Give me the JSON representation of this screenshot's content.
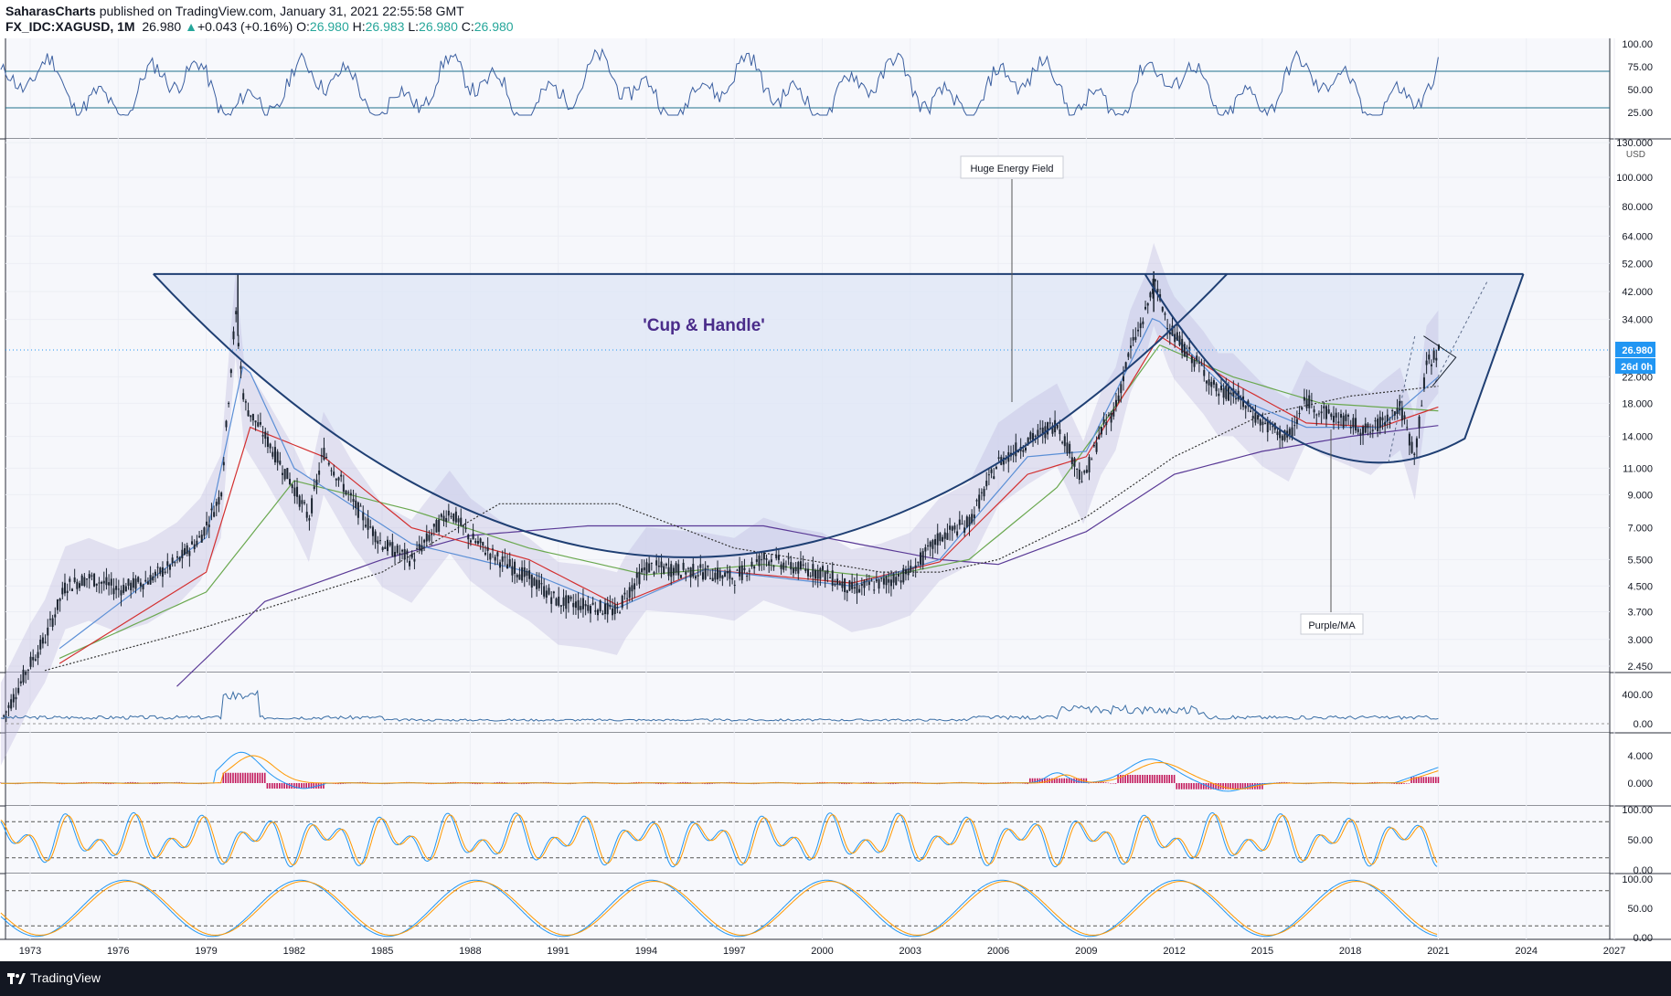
{
  "header": {
    "author": "SaharasCharts",
    "published_text": " published on TradingView.com, January 31, 2021 22:55:58 GMT",
    "symbol": "FX_IDC:XAGUSD, 1M",
    "last": "26.980",
    "change": "+0.043 (+0.16%)",
    "o_label": "O:",
    "o_value": "26.980",
    "h_label": "H:",
    "h_value": "26.983",
    "l_label": "L:",
    "l_value": "26.980",
    "c_label": "C:",
    "c_value": "26.980"
  },
  "footer": {
    "brand": "TradingView"
  },
  "colors": {
    "price_badge": "#2196f3",
    "cup_fill": "#dde6f6",
    "cup_line": "#1f3f73",
    "candle": "#1b2430",
    "ma_blue": "#5b8fd6",
    "ma_red": "#d32f2f",
    "ma_green": "#6aa84f",
    "ma_purple": "#5a3a96",
    "ma_black_dotted": "#333333",
    "rsi_line": "#3b5fa0",
    "macd_blue": "#2196f3",
    "macd_orange": "#ff9800",
    "macd_hist": "#c2185b",
    "stoch_k": "#2196f3",
    "stoch_d": "#ff9800",
    "title_text": "#4a2c8a"
  },
  "chart_data": {
    "type": "line",
    "symbol": "FX_IDC:XAGUSD",
    "interval": "1M",
    "x_ticks": [
      "1973",
      "1976",
      "1979",
      "1982",
      "1985",
      "1988",
      "1991",
      "1994",
      "1997",
      "2000",
      "2003",
      "2006",
      "2009",
      "2012",
      "2015",
      "2018",
      "2021",
      "2024",
      "2027"
    ],
    "price_axis": {
      "unit": "USD",
      "scale": "log",
      "ticks": [
        "130.000",
        "100.000",
        "80.000",
        "64.000",
        "52.000",
        "42.000",
        "34.000",
        "26.980",
        "22.000",
        "18.000",
        "14.000",
        "11.000",
        "9.000",
        "7.000",
        "5.500",
        "4.500",
        "3.700",
        "3.000",
        "2.450"
      ],
      "last_price_label": "26.980",
      "countdown_label": "26d 0h"
    },
    "annotations": [
      {
        "text": "'Cup & Handle'"
      },
      {
        "text": "Huge Energy Field"
      },
      {
        "text": "Purple/MA"
      }
    ],
    "price_series": {
      "name": "",
      "x": [
        1972.0,
        1973.0,
        1973.5,
        1974.2,
        1975.0,
        1976.0,
        1977.0,
        1978.0,
        1978.8,
        1979.5,
        1980.0,
        1980.3,
        1981.0,
        1982.0,
        1982.5,
        1983.0,
        1984.0,
        1985.0,
        1986.0,
        1987.3,
        1988.0,
        1989.0,
        1990.0,
        1991.0,
        1992.0,
        1993.0,
        1993.3,
        1994.0,
        1995.0,
        1996.0,
        1997.0,
        1998.0,
        1999.0,
        2000.0,
        2001.0,
        2002.0,
        2003.0,
        2004.0,
        2005.0,
        2006.0,
        2007.0,
        2008.0,
        2008.9,
        2009.5,
        2010.0,
        2010.5,
        2011.0,
        2011.3,
        2011.8,
        2012.0,
        2013.0,
        2013.5,
        2014.0,
        2015.0,
        2015.9,
        2016.5,
        2017.0,
        2018.0,
        2018.7,
        2019.0,
        2019.7,
        2020.2,
        2020.6,
        2021.0
      ],
      "y": [
        1.6,
        2.5,
        3.0,
        4.5,
        4.8,
        4.4,
        4.7,
        5.4,
        6.5,
        9.0,
        36,
        18,
        14,
        9.5,
        7.5,
        12.5,
        8.5,
        6.2,
        5.5,
        8.0,
        6.5,
        5.5,
        4.8,
        4.0,
        3.9,
        3.7,
        4.2,
        5.2,
        5.1,
        5.0,
        4.8,
        5.6,
        5.2,
        5.0,
        4.4,
        4.6,
        5.0,
        6.5,
        7.3,
        11.5,
        13.5,
        15.5,
        10.0,
        14.5,
        17.5,
        27,
        35,
        45,
        33,
        30,
        23,
        19.5,
        19.5,
        15.5,
        13.8,
        18.5,
        17,
        15.5,
        14.5,
        15.5,
        17.5,
        12.0,
        24,
        26.98
      ]
    },
    "indicators": [
      {
        "name": "RSI",
        "y_ticks": [
          "100.00",
          "75.00",
          "50.00",
          "25.00"
        ],
        "levels": [
          70,
          30
        ]
      },
      {
        "name": "",
        "y_ticks": [
          "400.00",
          "0.00"
        ]
      },
      {
        "name": "MACD",
        "y_ticks": [
          "4.000",
          "0.000"
        ]
      },
      {
        "name": "Stochastic",
        "y_ticks": [
          "100.00",
          "50.00",
          "0.00"
        ],
        "levels": [
          80,
          20
        ]
      },
      {
        "name": "Stochastic RSI",
        "y_ticks": [
          "100.00",
          "50.00",
          "0.00"
        ],
        "levels": [
          80,
          20
        ]
      }
    ]
  }
}
